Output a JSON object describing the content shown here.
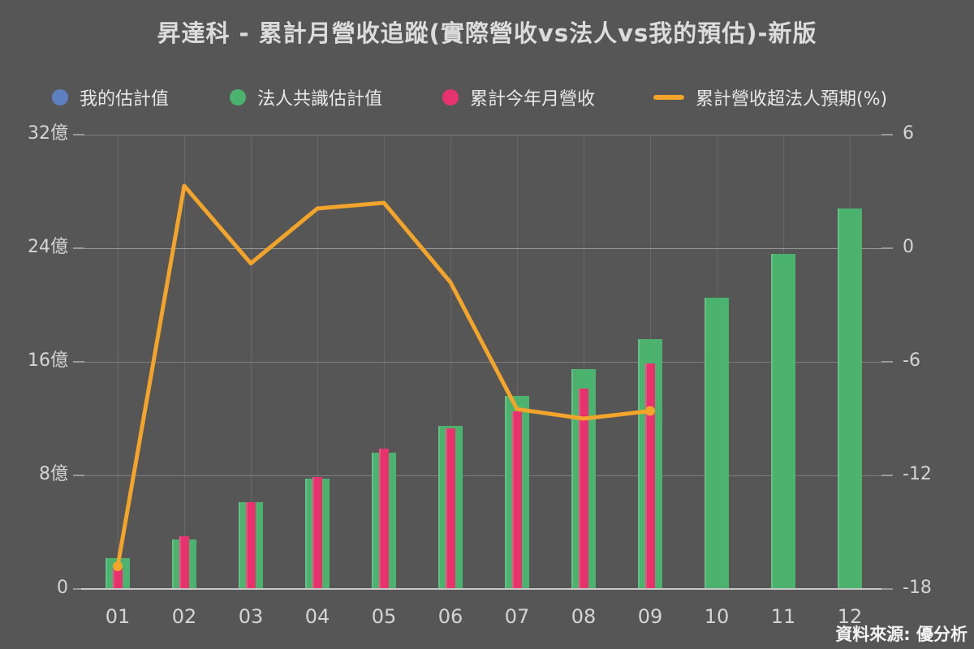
{
  "title": "昇達科 - 累計月營收追蹤(實際營收vs法人vs我的預估)-新版",
  "source": "資料來源: 優分析",
  "colors": {
    "background": "#565656",
    "my_estimate_blue": "#5d80c1",
    "consensus_green": "#4cb36e",
    "actual_pink": "#e8326e",
    "pct_line_orange": "#f2a42b",
    "text": "#dcdcdc"
  },
  "legend": {
    "items": [
      {
        "label": "我的估計值",
        "marker": "circle",
        "color": "#5d80c1"
      },
      {
        "label": "法人共識估計值",
        "marker": "circle",
        "color": "#4cb36e"
      },
      {
        "label": "累計今年月營收",
        "marker": "circle",
        "color": "#e8326e"
      },
      {
        "label": "累計營收超法人預期(%)",
        "marker": "line",
        "color": "#f2a42b"
      }
    ]
  },
  "chart_data": {
    "type": "bar",
    "title": "昇達科 - 累計月營收追蹤(實際營收vs法人vs我的預估)-新版",
    "categories": [
      "01",
      "02",
      "03",
      "04",
      "05",
      "06",
      "07",
      "08",
      "09",
      "10",
      "11",
      "12"
    ],
    "series": [
      {
        "name": "我的估計值",
        "type": "bar",
        "axis": "left",
        "color": "#5d80c1",
        "values": []
      },
      {
        "name": "法人共識估計值",
        "type": "bar",
        "axis": "left",
        "color": "#4cb36e",
        "values": [
          2.2,
          3.5,
          6.1,
          7.8,
          9.6,
          11.5,
          13.6,
          15.5,
          17.6,
          20.5,
          23.6,
          26.8
        ]
      },
      {
        "name": "累計今年月營收",
        "type": "bar",
        "axis": "left",
        "color": "#e8326e",
        "values": [
          1.5,
          3.7,
          6.1,
          7.9,
          9.9,
          11.3,
          12.5,
          14.1,
          15.9,
          null,
          null,
          null
        ]
      },
      {
        "name": "累計營收超法人預期(%)",
        "type": "line",
        "axis": "right",
        "color": "#f2a42b",
        "values": [
          -16.8,
          3.3,
          -0.8,
          2.1,
          2.4,
          -1.8,
          -8.5,
          -9.0,
          -8.6,
          null,
          null,
          null
        ]
      }
    ],
    "left_axis": {
      "unit": "億",
      "tick_labels": [
        "0",
        "8億",
        "16億",
        "24億",
        "32億"
      ],
      "tick_values": [
        0,
        8,
        16,
        24,
        32
      ],
      "range": [
        0,
        32
      ]
    },
    "right_axis": {
      "unit": "%",
      "tick_labels": [
        "-18",
        "-12",
        "-6",
        "0",
        "6"
      ],
      "tick_values": [
        -18,
        -12,
        -6,
        0,
        6
      ],
      "range": [
        -18,
        6
      ]
    },
    "grid": "on",
    "legend_position": "top",
    "source": "資料來源: 優分析"
  }
}
